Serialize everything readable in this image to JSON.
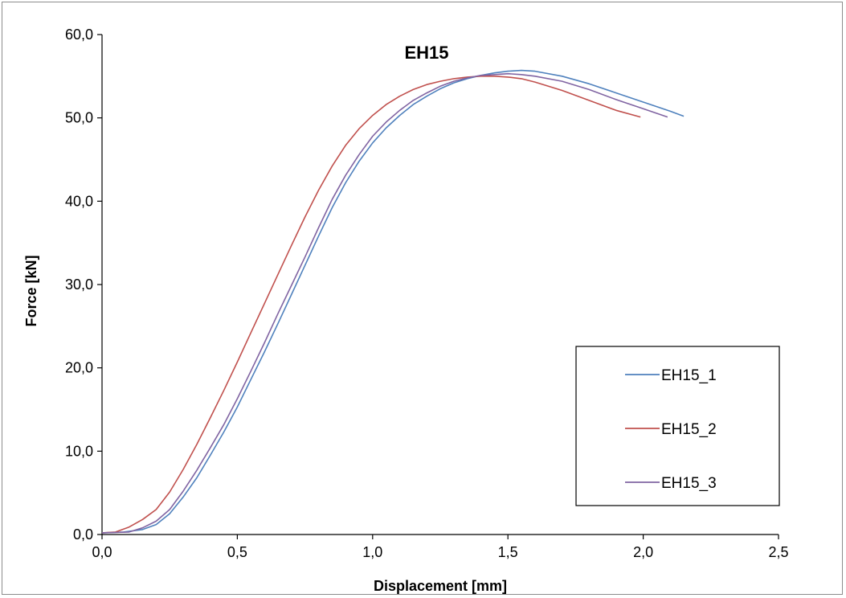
{
  "chart_data": {
    "type": "line",
    "title": "EH15",
    "xlabel": "Displacement [mm]",
    "ylabel": "Force [kN]",
    "xlim": [
      0,
      2.5
    ],
    "ylim": [
      0,
      60
    ],
    "x_ticks": [
      "0,0",
      "0,5",
      "1,0",
      "1,5",
      "2,0",
      "2,5"
    ],
    "y_ticks": [
      "0,0",
      "10,0",
      "20,0",
      "30,0",
      "40,0",
      "50,0",
      "60,0"
    ],
    "grid": false,
    "legend_position": "right",
    "series": [
      {
        "name": "EH15_1",
        "color": "#4f81bd",
        "x": [
          0.0,
          0.08,
          0.15,
          0.2,
          0.25,
          0.3,
          0.35,
          0.4,
          0.45,
          0.5,
          0.55,
          0.6,
          0.65,
          0.7,
          0.75,
          0.8,
          0.85,
          0.9,
          0.95,
          1.0,
          1.05,
          1.1,
          1.15,
          1.2,
          1.25,
          1.3,
          1.35,
          1.4,
          1.45,
          1.5,
          1.55,
          1.6,
          1.7,
          1.8,
          1.9,
          2.0,
          2.1,
          2.15
        ],
        "y": [
          0.2,
          0.3,
          0.6,
          1.2,
          2.5,
          4.5,
          6.8,
          9.5,
          12.3,
          15.3,
          18.6,
          21.9,
          25.3,
          28.8,
          32.3,
          35.8,
          39.2,
          42.2,
          44.8,
          47.0,
          48.8,
          50.3,
          51.6,
          52.6,
          53.5,
          54.2,
          54.7,
          55.1,
          55.4,
          55.6,
          55.7,
          55.6,
          55.0,
          54.1,
          53.0,
          51.9,
          50.8,
          50.2
        ]
      },
      {
        "name": "EH15_2",
        "color": "#c0504d",
        "x": [
          0.0,
          0.05,
          0.1,
          0.15,
          0.2,
          0.25,
          0.3,
          0.35,
          0.4,
          0.45,
          0.5,
          0.55,
          0.6,
          0.65,
          0.7,
          0.75,
          0.8,
          0.85,
          0.9,
          0.95,
          1.0,
          1.05,
          1.1,
          1.15,
          1.2,
          1.25,
          1.3,
          1.35,
          1.4,
          1.45,
          1.5,
          1.55,
          1.6,
          1.7,
          1.8,
          1.9,
          1.99
        ],
        "y": [
          0.2,
          0.3,
          0.9,
          1.8,
          3.0,
          5.1,
          7.8,
          10.8,
          14.0,
          17.3,
          20.7,
          24.2,
          27.7,
          31.2,
          34.7,
          38.1,
          41.3,
          44.2,
          46.7,
          48.7,
          50.3,
          51.6,
          52.6,
          53.4,
          54.0,
          54.4,
          54.7,
          54.9,
          55.0,
          55.0,
          54.9,
          54.7,
          54.3,
          53.3,
          52.1,
          50.9,
          50.1
        ]
      },
      {
        "name": "EH15_3",
        "color": "#8064a2",
        "x": [
          0.0,
          0.1,
          0.15,
          0.2,
          0.25,
          0.3,
          0.35,
          0.4,
          0.45,
          0.5,
          0.55,
          0.6,
          0.65,
          0.7,
          0.75,
          0.8,
          0.85,
          0.9,
          0.95,
          1.0,
          1.05,
          1.1,
          1.15,
          1.2,
          1.25,
          1.3,
          1.35,
          1.4,
          1.45,
          1.5,
          1.55,
          1.6,
          1.7,
          1.8,
          1.9,
          2.0,
          2.09
        ],
        "y": [
          0.2,
          0.3,
          0.8,
          1.6,
          3.0,
          5.2,
          7.7,
          10.4,
          13.2,
          16.3,
          19.6,
          23.0,
          26.5,
          29.9,
          33.3,
          36.8,
          40.2,
          43.1,
          45.6,
          47.8,
          49.5,
          50.9,
          52.1,
          53.0,
          53.8,
          54.4,
          54.8,
          55.1,
          55.2,
          55.3,
          55.2,
          55.0,
          54.4,
          53.4,
          52.2,
          51.1,
          50.1
        ]
      }
    ]
  }
}
